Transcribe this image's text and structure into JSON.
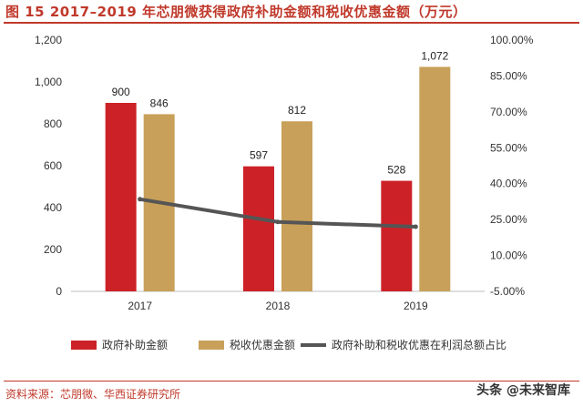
{
  "header": {
    "title": "图 15  2017–2019 年芯朋微获得政府补助金额和税收优惠金额（万元）"
  },
  "footer": {
    "source": "资料来源：芯朋微、华西证券研究所",
    "watermark": "头条 @未来智库"
  },
  "colors": {
    "accent": "#c0392b",
    "subsidy": "#cc2127",
    "tax": "#c8a05a",
    "ratio_line": "#555555"
  },
  "chart_data": {
    "type": "bar",
    "categories": [
      "2017",
      "2018",
      "2019"
    ],
    "series": [
      {
        "name": "政府补助金额",
        "type": "bar",
        "axis": "left",
        "values": [
          900,
          597,
          528
        ],
        "labels": [
          "900",
          "597",
          "528"
        ]
      },
      {
        "name": "税收优惠金额",
        "type": "bar",
        "axis": "left",
        "values": [
          846,
          812,
          1072
        ],
        "labels": [
          "846",
          "812",
          "1,072"
        ]
      },
      {
        "name": "政府补助和税收优惠在利润总额占比",
        "type": "line",
        "axis": "right",
        "values": [
          0.335,
          0.24,
          0.22
        ]
      }
    ],
    "ylim": [
      0,
      1200
    ],
    "y_ticks": [
      "0",
      "200",
      "400",
      "600",
      "800",
      "1,000",
      "1,200"
    ],
    "y2lim": [
      -0.05,
      1.0
    ],
    "y2_ticks": [
      "-5.00%",
      "10.00%",
      "25.00%",
      "40.00%",
      "55.00%",
      "70.00%",
      "85.00%",
      "100.00%"
    ],
    "grid": false,
    "legend_position": "bottom"
  }
}
